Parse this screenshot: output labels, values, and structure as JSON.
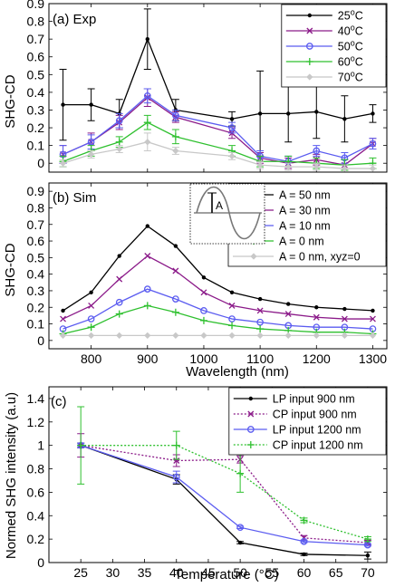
{
  "chart_data": [
    {
      "type": "line",
      "panel_label": "(a) Exp",
      "ylabel": "SHG-CD",
      "xlim": [
        725,
        1325
      ],
      "ylim": [
        -0.05,
        0.9
      ],
      "yticks": [
        "0",
        "0.1",
        "0.2",
        "0.3",
        "0.4",
        "0.5",
        "0.6",
        "0.7",
        "0.8",
        "0.9"
      ],
      "yticks_values": [
        0,
        0.1,
        0.2,
        0.3,
        0.4,
        0.5,
        0.6,
        0.7,
        0.8,
        0.9
      ],
      "xticks_values": [
        800,
        900,
        1000,
        1100,
        1200,
        1300
      ],
      "legend_position": "top-right",
      "legend_marker_cols": 62,
      "x": [
        750,
        800,
        850,
        900,
        950,
        1050,
        1100,
        1150,
        1200,
        1250,
        1300
      ],
      "series": [
        {
          "name": "25°C",
          "label_num": "25",
          "label_unit": "C",
          "color": "#000000",
          "marker": "dot",
          "values": [
            0.33,
            0.33,
            0.28,
            0.7,
            0.3,
            0.25,
            0.28,
            0.28,
            0.29,
            0.25,
            0.28
          ],
          "err": [
            0.2,
            0.09,
            0.08,
            0.17,
            0.06,
            0.04,
            0.24,
            0.16,
            0.15,
            0.13,
            0.05
          ]
        },
        {
          "name": "40°C",
          "label_num": "40",
          "label_unit": "C",
          "color": "#8b1a89",
          "marker": "x",
          "values": [
            0.05,
            0.12,
            0.23,
            0.37,
            0.26,
            0.17,
            0.03,
            0.0,
            0.02,
            -0.01,
            0.11
          ],
          "err": [
            0.05,
            0.05,
            0.04,
            0.05,
            0.03,
            0.03,
            0.03,
            0.03,
            0.03,
            0.03,
            0.03
          ]
        },
        {
          "name": "50°C",
          "label_num": "50",
          "label_unit": "C",
          "color": "#5b5cf0",
          "marker": "circle",
          "values": [
            0.05,
            0.12,
            0.24,
            0.38,
            0.27,
            0.2,
            0.04,
            0.01,
            0.07,
            0.03,
            0.11
          ],
          "err": [
            0.05,
            0.04,
            0.04,
            0.04,
            0.03,
            0.03,
            0.03,
            0.03,
            0.03,
            0.03,
            0.03
          ]
        },
        {
          "name": "60°C",
          "label_num": "60",
          "label_unit": "C",
          "color": "#2fc02f",
          "marker": "plus",
          "values": [
            0.01,
            0.07,
            0.12,
            0.23,
            0.15,
            0.07,
            0.01,
            0.01,
            0.0,
            -0.01,
            0.0
          ],
          "err": [
            0.03,
            0.03,
            0.03,
            0.04,
            0.04,
            0.03,
            0.03,
            0.03,
            0.03,
            0.03,
            0.03
          ]
        },
        {
          "name": "70°C",
          "label_num": "70",
          "label_unit": "C",
          "color": "#c8c8c8",
          "marker": "diamond",
          "values": [
            0.0,
            0.05,
            0.08,
            0.12,
            0.07,
            0.04,
            -0.01,
            -0.02,
            -0.02,
            -0.03,
            -0.03
          ],
          "err": [
            0.02,
            0.02,
            0.02,
            0.05,
            0.02,
            0.02,
            0.02,
            0.02,
            0.02,
            0.02,
            0.02
          ]
        }
      ]
    },
    {
      "type": "line",
      "panel_label": "(b) Sim",
      "ylabel": "SHG-CD",
      "xlabel": "Wavelength (nm)",
      "xlim": [
        725,
        1325
      ],
      "ylim": [
        -0.05,
        0.95
      ],
      "yticks": [
        "0",
        "0.1",
        "0.2",
        "0.3",
        "0.4",
        "0.5",
        "0.6",
        "0.7",
        "0.8",
        "0.9"
      ],
      "yticks_values": [
        0,
        0.1,
        0.2,
        0.3,
        0.4,
        0.5,
        0.6,
        0.7,
        0.8,
        0.9
      ],
      "xticks": [
        "800",
        "900",
        "1000",
        "1100",
        "1200",
        "1300"
      ],
      "xticks_values": [
        800,
        900,
        1000,
        1100,
        1200,
        1300
      ],
      "inset_label": "A",
      "legend_position": "top-right",
      "legend_marker_cols": 56,
      "x": [
        750,
        800,
        850,
        900,
        950,
        1000,
        1050,
        1100,
        1150,
        1200,
        1250,
        1300
      ],
      "series": [
        {
          "name": "A = 50 nm",
          "color": "#000000",
          "marker": "dot",
          "values": [
            0.18,
            0.29,
            0.51,
            0.69,
            0.57,
            0.38,
            0.29,
            0.25,
            0.22,
            0.2,
            0.19,
            0.18
          ]
        },
        {
          "name": "A = 30 nm",
          "color": "#8b1a89",
          "marker": "x",
          "values": [
            0.13,
            0.21,
            0.37,
            0.51,
            0.42,
            0.29,
            0.21,
            0.18,
            0.16,
            0.14,
            0.13,
            0.13
          ]
        },
        {
          "name": "A = 10 nm",
          "color": "#5b5cf0",
          "marker": "circle",
          "values": [
            0.07,
            0.13,
            0.23,
            0.31,
            0.25,
            0.18,
            0.13,
            0.11,
            0.09,
            0.08,
            0.08,
            0.07
          ]
        },
        {
          "name": "A = 0 nm",
          "color": "#2fc02f",
          "marker": "plus",
          "values": [
            0.04,
            0.08,
            0.16,
            0.21,
            0.17,
            0.12,
            0.09,
            0.07,
            0.06,
            0.05,
            0.05,
            0.04
          ]
        },
        {
          "name": "A = 0 nm, xyz=0",
          "color": "#c8c8c8",
          "marker": "diamond",
          "values": [
            0.03,
            0.03,
            0.03,
            0.03,
            0.03,
            0.03,
            0.03,
            0.03,
            0.03,
            0.03,
            0.03,
            0.03
          ]
        }
      ]
    },
    {
      "type": "line",
      "panel_label": "(c)",
      "ylabel": "Normed SHG intensity (a.u)",
      "xlabel": "Temperature (°C)",
      "xlim": [
        20,
        73
      ],
      "ylim": [
        0,
        1.5
      ],
      "yticks": [
        "0",
        "0.2",
        "0.4",
        "0.6",
        "0.8",
        "1",
        "1.2",
        "1.4"
      ],
      "yticks_values": [
        0,
        0.2,
        0.4,
        0.6,
        0.8,
        1,
        1.2,
        1.4
      ],
      "xticks": [
        "25",
        "30",
        "35",
        "40",
        "45",
        "50",
        "55",
        "60",
        "65",
        "70"
      ],
      "xticks_values": [
        25,
        30,
        35,
        40,
        45,
        50,
        55,
        60,
        65,
        70
      ],
      "legend_position": "top-right",
      "legend_marker_cols": 48,
      "x": [
        25,
        40,
        50,
        60,
        70
      ],
      "series": [
        {
          "name": "LP input 900 nm",
          "color": "#000000",
          "marker": "dot",
          "dash": "",
          "values": [
            1.0,
            0.71,
            0.17,
            0.07,
            0.06
          ],
          "err": [
            0.02,
            0.04,
            0.01,
            0.01,
            0.03
          ]
        },
        {
          "name": "CP input 900 nm",
          "color": "#8b1a89",
          "marker": "x",
          "dash": "2,2",
          "values": [
            1.0,
            0.87,
            0.88,
            0.21,
            0.17
          ],
          "err": [
            0.1,
            0.05,
            0.03,
            0.02,
            0.02
          ]
        },
        {
          "name": "LP input 1200 nm",
          "color": "#5b5cf0",
          "marker": "circle",
          "dash": "",
          "values": [
            1.0,
            0.73,
            0.3,
            0.18,
            0.15
          ],
          "err": [
            0.02,
            0.05,
            0.01,
            0.01,
            0.01
          ]
        },
        {
          "name": "CP input 1200 nm",
          "color": "#2fc02f",
          "marker": "plus",
          "dash": "2,2",
          "values": [
            1.0,
            1.0,
            0.76,
            0.36,
            0.2
          ],
          "err": [
            0.33,
            0.12,
            0.16,
            0.02,
            0.02
          ]
        }
      ]
    }
  ]
}
